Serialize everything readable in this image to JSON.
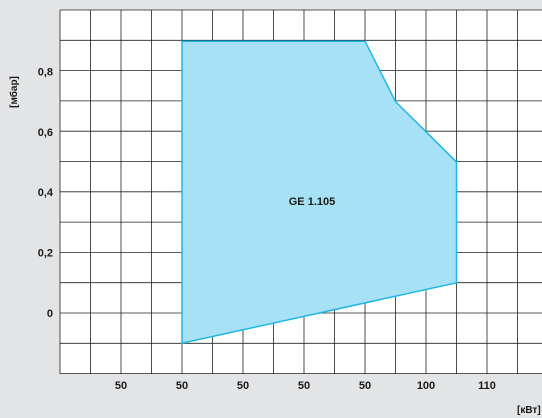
{
  "chart_data": {
    "type": "area",
    "xlabel": "[кВт]",
    "ylabel": "[мбар]",
    "x_tick_labels": [
      "50",
      "50",
      "50",
      "50",
      "50",
      "100",
      "110"
    ],
    "y_ticks": [
      0,
      0.2,
      0.4,
      0.6,
      0.8
    ],
    "y_tick_labels": [
      "0",
      "0,2",
      "0,4",
      "0,6",
      "0,8"
    ],
    "ylim": [
      -0.2,
      0.9
    ],
    "grid": true,
    "series": [
      {
        "name": "GE 1.105",
        "x_unit_steps": [
          4,
          4,
          10,
          11,
          13,
          13
        ],
        "y": [
          -0.1,
          0.9,
          0.9,
          0.7,
          0.5,
          0.1
        ],
        "fill": "#a6e1f6",
        "stroke": "#1fb6e6"
      }
    ]
  }
}
